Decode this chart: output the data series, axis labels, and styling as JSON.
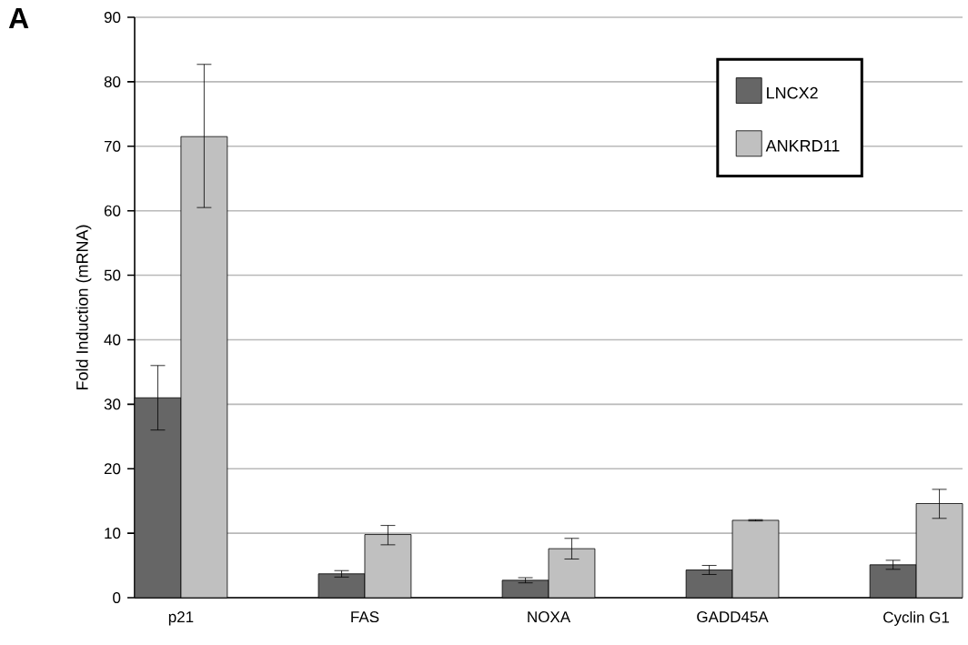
{
  "chart_data": {
    "type": "bar",
    "ylabel": "Fold Induction (mRNA)",
    "annotations": [
      "A"
    ],
    "categories": [
      "p21",
      "FAS",
      "NOXA",
      "GADD45A",
      "Cyclin G1"
    ],
    "series": [
      {
        "name": "LNCX2",
        "color": "#666666",
        "values": [
          31,
          3.7,
          2.7,
          4.3,
          5.1
        ],
        "errors": [
          [
            26,
            36
          ],
          [
            3.2,
            4.2
          ],
          [
            2.3,
            3.1
          ],
          [
            3.6,
            5.0
          ],
          [
            4.4,
            5.8
          ]
        ]
      },
      {
        "name": "ANKRD11",
        "color": "#c0c0c0",
        "values": [
          71.5,
          9.8,
          7.6,
          12.0,
          14.6
        ],
        "errors": [
          [
            60.5,
            82.7
          ],
          [
            8.2,
            11.2
          ],
          [
            6.0,
            9.2
          ],
          [
            11.9,
            12.1
          ],
          [
            12.3,
            16.8
          ]
        ]
      }
    ],
    "ylim": [
      0,
      90
    ],
    "yticks": [
      0,
      10,
      20,
      30,
      40,
      50,
      60,
      70,
      80,
      90
    ],
    "grid": "y",
    "legend": "top right"
  }
}
